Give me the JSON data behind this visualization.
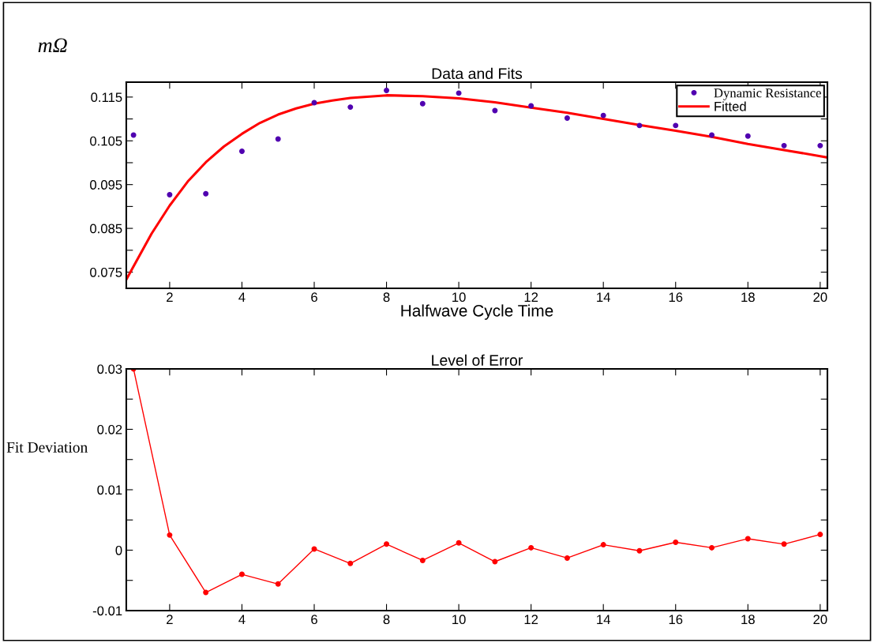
{
  "chart_data": [
    {
      "type": "scatter",
      "title": "Data and Fits",
      "xlabel": "Halfwave Cycle Time",
      "ylabel": "mΩ",
      "legend": "top right",
      "x": [
        1,
        2,
        3,
        4,
        5,
        6,
        7,
        8,
        9,
        10,
        11,
        12,
        13,
        14,
        15,
        16,
        17,
        18,
        19,
        20
      ],
      "series": [
        {
          "name": "Dynamic Resistance",
          "marker": "circle",
          "color": "#5000b0",
          "values": [
            0.1063,
            0.0927,
            0.0929,
            0.1026,
            0.1054,
            0.1137,
            0.1127,
            0.1165,
            0.1135,
            0.1159,
            0.1119,
            0.113,
            0.1102,
            0.1108,
            0.1085,
            0.1085,
            0.1063,
            0.1061,
            0.1039,
            0.1039
          ]
        },
        {
          "name": "Fitted",
          "type": "line",
          "line_style": "solid",
          "color": "#ff0000",
          "x": [
            0.8,
            1,
            1.5,
            2,
            2.5,
            3,
            3.5,
            4,
            4.5,
            5,
            5.5,
            6,
            6.5,
            7,
            8,
            9,
            10,
            11,
            12,
            13,
            14,
            15,
            16,
            17,
            18,
            19,
            20,
            20.2
          ],
          "values": [
            0.0733,
            0.0763,
            0.0838,
            0.0902,
            0.0957,
            0.1001,
            0.1037,
            0.1066,
            0.1091,
            0.111,
            0.1124,
            0.1135,
            0.1142,
            0.1148,
            0.1154,
            0.1152,
            0.1147,
            0.1138,
            0.1126,
            0.1114,
            0.11,
            0.1086,
            0.1073,
            0.1059,
            0.1043,
            0.1029,
            0.1015,
            0.1012
          ]
        }
      ],
      "xlim": [
        0.8,
        20.2
      ],
      "ylim": [
        0.0713,
        0.1184
      ],
      "xticks": [
        2,
        4,
        6,
        8,
        10,
        12,
        14,
        16,
        18,
        20
      ],
      "yticks": [
        0.075,
        {
          "value": 0.08,
          "label": null
        },
        0.085,
        {
          "value": 0.09,
          "label": null
        },
        0.095,
        {
          "value": 0.1,
          "label": null
        },
        0.105,
        {
          "value": 0.11,
          "label": null
        },
        0.115
      ]
    },
    {
      "type": "line",
      "title": "Level of Error",
      "ylabel": "Fit Deviation",
      "x": [
        1,
        2,
        3,
        4,
        5,
        6,
        7,
        8,
        9,
        10,
        11,
        12,
        13,
        14,
        15,
        16,
        17,
        18,
        19,
        20
      ],
      "series": [
        {
          "marker": "circle",
          "line_style": "solid",
          "color": "#ff0000",
          "values": [
            0.03,
            0.0025,
            -0.007,
            -0.004,
            -0.0056,
            0.0002,
            -0.0022,
            0.001,
            -0.0017,
            0.0012,
            -0.0019,
            0.0004,
            -0.0013,
            0.0009,
            -0.0001,
            0.0013,
            0.0004,
            0.0019,
            0.001,
            0.0026
          ]
        }
      ],
      "xlim": [
        0.8,
        20.2
      ],
      "ylim": [
        -0.01,
        0.03
      ],
      "xticks": [
        2,
        4,
        6,
        8,
        10,
        12,
        14,
        16,
        18,
        20
      ],
      "yticks": [
        -0.01,
        {
          "value": -0.005,
          "label": null
        },
        0,
        {
          "value": 0.005,
          "label": null
        },
        0.01,
        {
          "value": 0.015,
          "label": null
        },
        0.02,
        {
          "value": 0.025,
          "label": null
        },
        0.03
      ]
    }
  ]
}
